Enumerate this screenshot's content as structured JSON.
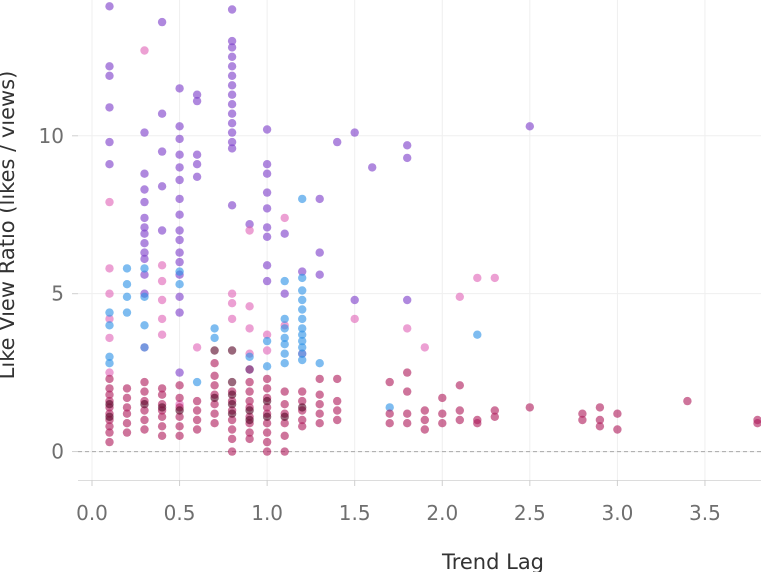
{
  "chart_data": {
    "type": "scatter",
    "title": "",
    "xlabel": "Trend Lag",
    "ylabel": "Like View Ratio (likes / views)",
    "xlim": [
      -0.08,
      3.82
    ],
    "ylim": [
      -0.9,
      14.3
    ],
    "x_ticks": [
      0.0,
      0.5,
      1.0,
      1.5,
      2.0,
      2.5,
      3.0,
      3.5
    ],
    "x_tick_labels": [
      "0.0",
      "0.5",
      "1.0",
      "1.5",
      "2.0",
      "2.5",
      "3.0",
      "3.5"
    ],
    "y_ticks": [
      0,
      5,
      10
    ],
    "y_tick_labels": [
      "0",
      "5",
      "10"
    ],
    "reference_line_y": 0,
    "grid": true,
    "legend": "none",
    "colors": [
      "#7e3fc9",
      "#e066b8",
      "#2f93e6",
      "#b01f5e",
      "#5a0a2a"
    ],
    "series": [
      {
        "color": "#7e3fc9",
        "points": [
          [
            0.1,
            14.1
          ],
          [
            0.1,
            12.2
          ],
          [
            0.1,
            11.9
          ],
          [
            0.1,
            10.9
          ],
          [
            0.1,
            9.8
          ],
          [
            0.1,
            9.1
          ],
          [
            0.4,
            13.6
          ],
          [
            0.4,
            10.7
          ],
          [
            0.4,
            9.5
          ],
          [
            0.4,
            8.4
          ],
          [
            0.4,
            7.0
          ],
          [
            0.3,
            10.1
          ],
          [
            0.3,
            8.8
          ],
          [
            0.3,
            8.3
          ],
          [
            0.3,
            7.9
          ],
          [
            0.3,
            7.4
          ],
          [
            0.3,
            7.1
          ],
          [
            0.3,
            6.9
          ],
          [
            0.3,
            6.6
          ],
          [
            0.3,
            6.3
          ],
          [
            0.3,
            6.1
          ],
          [
            0.3,
            5.6
          ],
          [
            0.3,
            5.0
          ],
          [
            0.5,
            11.5
          ],
          [
            0.5,
            10.3
          ],
          [
            0.5,
            9.9
          ],
          [
            0.5,
            9.4
          ],
          [
            0.5,
            9.0
          ],
          [
            0.5,
            8.6
          ],
          [
            0.5,
            8.0
          ],
          [
            0.5,
            7.5
          ],
          [
            0.5,
            7.0
          ],
          [
            0.5,
            6.7
          ],
          [
            0.5,
            6.3
          ],
          [
            0.5,
            6.0
          ],
          [
            0.5,
            5.6
          ],
          [
            0.5,
            4.9
          ],
          [
            0.5,
            4.4
          ],
          [
            0.5,
            2.5
          ],
          [
            0.6,
            11.3
          ],
          [
            0.6,
            11.1
          ],
          [
            0.6,
            9.4
          ],
          [
            0.6,
            9.1
          ],
          [
            0.6,
            8.7
          ],
          [
            0.8,
            14.0
          ],
          [
            0.8,
            13.0
          ],
          [
            0.8,
            12.8
          ],
          [
            0.8,
            12.5
          ],
          [
            0.8,
            12.2
          ],
          [
            0.8,
            11.9
          ],
          [
            0.8,
            11.6
          ],
          [
            0.8,
            11.3
          ],
          [
            0.8,
            11.0
          ],
          [
            0.8,
            10.7
          ],
          [
            0.8,
            10.4
          ],
          [
            0.8,
            10.1
          ],
          [
            0.8,
            9.8
          ],
          [
            0.8,
            9.6
          ],
          [
            0.8,
            7.8
          ],
          [
            1.0,
            10.2
          ],
          [
            1.0,
            9.1
          ],
          [
            1.0,
            8.8
          ],
          [
            1.0,
            8.2
          ],
          [
            1.0,
            7.7
          ],
          [
            1.0,
            7.1
          ],
          [
            1.0,
            6.8
          ],
          [
            1.0,
            5.9
          ],
          [
            1.0,
            5.4
          ],
          [
            0.9,
            7.2
          ],
          [
            1.1,
            6.9
          ],
          [
            1.1,
            5.0
          ],
          [
            1.2,
            5.7
          ],
          [
            1.3,
            8.0
          ],
          [
            1.3,
            6.3
          ],
          [
            1.3,
            5.6
          ],
          [
            1.4,
            9.8
          ],
          [
            1.5,
            10.1
          ],
          [
            1.5,
            4.8
          ],
          [
            1.6,
            9.0
          ],
          [
            1.8,
            9.7
          ],
          [
            1.8,
            9.3
          ],
          [
            1.8,
            4.8
          ],
          [
            2.5,
            10.3
          ]
        ]
      },
      {
        "color": "#e066b8",
        "points": [
          [
            0.3,
            12.7
          ],
          [
            0.1,
            7.9
          ],
          [
            0.1,
            5.8
          ],
          [
            0.1,
            5.0
          ],
          [
            0.1,
            4.2
          ],
          [
            0.1,
            3.6
          ],
          [
            0.4,
            5.9
          ],
          [
            0.4,
            5.4
          ],
          [
            0.4,
            4.8
          ],
          [
            0.4,
            4.2
          ],
          [
            0.4,
            3.7
          ],
          [
            0.3,
            3.3
          ],
          [
            0.6,
            3.3
          ],
          [
            0.8,
            5.0
          ],
          [
            0.8,
            4.7
          ],
          [
            0.8,
            4.2
          ],
          [
            0.9,
            4.6
          ],
          [
            0.9,
            3.9
          ],
          [
            0.9,
            3.1
          ],
          [
            0.9,
            7.0
          ],
          [
            1.1,
            7.4
          ],
          [
            1.0,
            3.7
          ],
          [
            1.0,
            3.2
          ],
          [
            1.1,
            4.0
          ],
          [
            1.2,
            3.1
          ],
          [
            1.5,
            4.2
          ],
          [
            1.8,
            3.9
          ],
          [
            1.9,
            3.3
          ],
          [
            2.1,
            4.9
          ],
          [
            2.2,
            5.5
          ],
          [
            2.3,
            5.5
          ],
          [
            0.1,
            2.5
          ],
          [
            0.5,
            1.5
          ]
        ]
      },
      {
        "color": "#2f93e6",
        "points": [
          [
            0.1,
            4.4
          ],
          [
            0.1,
            4.0
          ],
          [
            0.1,
            3.0
          ],
          [
            0.1,
            2.8
          ],
          [
            0.2,
            5.8
          ],
          [
            0.2,
            5.3
          ],
          [
            0.2,
            4.9
          ],
          [
            0.2,
            4.4
          ],
          [
            0.3,
            5.8
          ],
          [
            0.3,
            4.9
          ],
          [
            0.3,
            4.0
          ],
          [
            0.3,
            3.3
          ],
          [
            0.5,
            5.7
          ],
          [
            0.5,
            5.3
          ],
          [
            0.7,
            3.9
          ],
          [
            0.7,
            3.6
          ],
          [
            0.6,
            2.2
          ],
          [
            0.9,
            3.0
          ],
          [
            0.9,
            2.6
          ],
          [
            1.0,
            3.5
          ],
          [
            1.0,
            2.7
          ],
          [
            1.1,
            5.4
          ],
          [
            1.1,
            4.2
          ],
          [
            1.1,
            3.9
          ],
          [
            1.1,
            3.6
          ],
          [
            1.1,
            3.4
          ],
          [
            1.1,
            3.1
          ],
          [
            1.1,
            2.8
          ],
          [
            1.2,
            8.0
          ],
          [
            1.2,
            5.5
          ],
          [
            1.2,
            5.1
          ],
          [
            1.2,
            4.8
          ],
          [
            1.2,
            4.5
          ],
          [
            1.2,
            4.2
          ],
          [
            1.2,
            3.9
          ],
          [
            1.2,
            3.7
          ],
          [
            1.2,
            3.5
          ],
          [
            1.2,
            3.3
          ],
          [
            1.2,
            3.1
          ],
          [
            1.2,
            2.9
          ],
          [
            1.3,
            2.8
          ],
          [
            1.7,
            1.4
          ],
          [
            2.2,
            3.7
          ]
        ]
      },
      {
        "color": "#b01f5e",
        "points": [
          [
            0.1,
            2.3
          ],
          [
            0.1,
            2.0
          ],
          [
            0.1,
            1.8
          ],
          [
            0.1,
            1.6
          ],
          [
            0.1,
            1.4
          ],
          [
            0.1,
            1.2
          ],
          [
            0.1,
            1.0
          ],
          [
            0.1,
            0.8
          ],
          [
            0.1,
            0.6
          ],
          [
            0.1,
            0.3
          ],
          [
            0.2,
            2.0
          ],
          [
            0.2,
            1.7
          ],
          [
            0.2,
            1.4
          ],
          [
            0.2,
            1.2
          ],
          [
            0.2,
            0.9
          ],
          [
            0.2,
            0.6
          ],
          [
            0.3,
            2.2
          ],
          [
            0.3,
            1.9
          ],
          [
            0.3,
            1.6
          ],
          [
            0.3,
            1.3
          ],
          [
            0.3,
            1.0
          ],
          [
            0.3,
            0.7
          ],
          [
            0.4,
            2.0
          ],
          [
            0.4,
            1.8
          ],
          [
            0.4,
            1.5
          ],
          [
            0.4,
            1.3
          ],
          [
            0.4,
            1.1
          ],
          [
            0.4,
            0.8
          ],
          [
            0.4,
            0.5
          ],
          [
            0.5,
            2.1
          ],
          [
            0.5,
            1.7
          ],
          [
            0.5,
            1.4
          ],
          [
            0.5,
            1.1
          ],
          [
            0.5,
            0.8
          ],
          [
            0.5,
            0.5
          ],
          [
            0.6,
            1.6
          ],
          [
            0.6,
            1.3
          ],
          [
            0.6,
            1.0
          ],
          [
            0.6,
            0.7
          ],
          [
            0.7,
            2.8
          ],
          [
            0.7,
            2.4
          ],
          [
            0.7,
            2.1
          ],
          [
            0.7,
            1.8
          ],
          [
            0.7,
            1.5
          ],
          [
            0.7,
            1.2
          ],
          [
            0.7,
            0.9
          ],
          [
            0.8,
            1.9
          ],
          [
            0.8,
            1.6
          ],
          [
            0.8,
            1.3
          ],
          [
            0.8,
            1.0
          ],
          [
            0.8,
            0.7
          ],
          [
            0.8,
            0.4
          ],
          [
            0.8,
            0.0
          ],
          [
            0.9,
            2.6
          ],
          [
            0.9,
            2.2
          ],
          [
            0.9,
            1.9
          ],
          [
            0.9,
            1.6
          ],
          [
            0.9,
            1.4
          ],
          [
            0.9,
            1.1
          ],
          [
            0.9,
            0.9
          ],
          [
            0.9,
            0.6
          ],
          [
            0.9,
            0.4
          ],
          [
            1.0,
            2.3
          ],
          [
            1.0,
            2.0
          ],
          [
            1.0,
            1.7
          ],
          [
            1.0,
            1.4
          ],
          [
            1.0,
            1.2
          ],
          [
            1.0,
            0.9
          ],
          [
            1.0,
            0.6
          ],
          [
            1.0,
            0.3
          ],
          [
            1.0,
            0.0
          ],
          [
            1.1,
            1.9
          ],
          [
            1.1,
            1.5
          ],
          [
            1.1,
            1.2
          ],
          [
            1.1,
            0.9
          ],
          [
            1.1,
            0.5
          ],
          [
            1.1,
            0.0
          ],
          [
            1.2,
            1.9
          ],
          [
            1.2,
            1.6
          ],
          [
            1.2,
            1.3
          ],
          [
            1.2,
            1.0
          ],
          [
            1.2,
            0.8
          ],
          [
            1.3,
            2.3
          ],
          [
            1.3,
            1.8
          ],
          [
            1.3,
            1.5
          ],
          [
            1.3,
            1.2
          ],
          [
            1.3,
            0.9
          ],
          [
            1.4,
            2.3
          ],
          [
            1.4,
            1.6
          ],
          [
            1.4,
            1.3
          ],
          [
            1.4,
            1.0
          ],
          [
            1.7,
            2.2
          ],
          [
            1.7,
            1.2
          ],
          [
            1.7,
            0.9
          ],
          [
            1.8,
            2.5
          ],
          [
            1.8,
            1.9
          ],
          [
            1.8,
            1.2
          ],
          [
            1.8,
            0.9
          ],
          [
            1.9,
            1.3
          ],
          [
            1.9,
            1.0
          ],
          [
            1.9,
            0.7
          ],
          [
            2.0,
            1.7
          ],
          [
            2.0,
            1.2
          ],
          [
            2.0,
            0.9
          ],
          [
            2.1,
            2.1
          ],
          [
            2.1,
            1.3
          ],
          [
            2.1,
            1.0
          ],
          [
            2.2,
            1.0
          ],
          [
            2.2,
            0.9
          ],
          [
            2.3,
            1.3
          ],
          [
            2.3,
            1.1
          ],
          [
            2.5,
            1.4
          ],
          [
            2.8,
            1.2
          ],
          [
            2.8,
            1.0
          ],
          [
            2.9,
            1.4
          ],
          [
            2.9,
            1.0
          ],
          [
            2.9,
            0.8
          ],
          [
            3.0,
            1.2
          ],
          [
            3.0,
            0.7
          ],
          [
            3.4,
            1.6
          ],
          [
            3.8,
            1.0
          ],
          [
            3.8,
            0.9
          ]
        ]
      },
      {
        "color": "#5a0a2a",
        "points": [
          [
            0.1,
            1.5
          ],
          [
            0.1,
            1.1
          ],
          [
            0.3,
            1.5
          ],
          [
            0.4,
            1.4
          ],
          [
            0.5,
            1.3
          ],
          [
            0.7,
            3.2
          ],
          [
            0.7,
            1.7
          ],
          [
            0.8,
            3.2
          ],
          [
            0.8,
            2.2
          ],
          [
            0.8,
            1.8
          ],
          [
            0.8,
            1.5
          ],
          [
            0.8,
            1.2
          ],
          [
            0.9,
            1.3
          ],
          [
            0.9,
            1.0
          ],
          [
            1.0,
            1.6
          ],
          [
            1.0,
            1.1
          ],
          [
            1.2,
            1.4
          ],
          [
            1.1,
            1.1
          ]
        ]
      }
    ]
  }
}
